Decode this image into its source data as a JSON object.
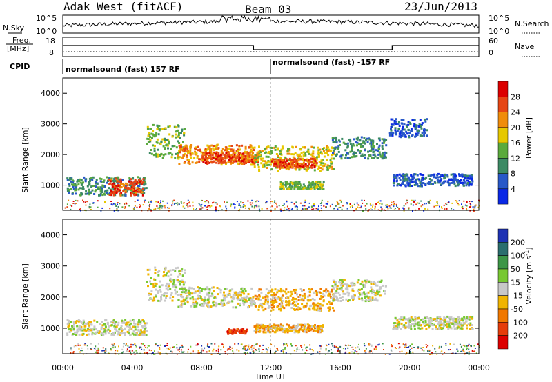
{
  "header": {
    "site": "Adak West (fitACF)",
    "beam": "Beam 03",
    "date": "23/Jun/2013"
  },
  "panels": {
    "nsky": {
      "label": "N.Sky",
      "tick_hi": "10^5",
      "tick_lo": "10^0",
      "right_label": "N.Search",
      "right_tick_hi": "10^5",
      "right_tick_lo": "10^0"
    },
    "freq": {
      "label_line1": "Freq.",
      "label_line2": "[MHz]",
      "tick_hi": "18",
      "tick_lo": "8",
      "right_label": "Nave",
      "right_tick_hi": "60",
      "right_tick_lo": "0",
      "high_mhz": 12.0,
      "low_mhz": 11.0,
      "low_start_hour": 11.0,
      "low_end_hour": 19.0
    },
    "cpid": {
      "label": "CPID",
      "segments": [
        {
          "text": "normalsound (fast) 157 RF",
          "start_hour": 0
        },
        {
          "text": "normalsound (fast) -157 RF",
          "start_hour": 12
        }
      ]
    }
  },
  "power_colorbar": {
    "label": "Power [dB]",
    "ticks": [
      "4",
      "8",
      "12",
      "16",
      "20",
      "24",
      "28"
    ],
    "colors": [
      "#0a28e6",
      "#2858c8",
      "#3c8a64",
      "#5aaa3c",
      "#e6c800",
      "#f08c0a",
      "#e64614",
      "#dc0000"
    ]
  },
  "velocity_colorbar": {
    "label": "Velocity [m s^-1]",
    "ticks": [
      "200",
      "100",
      "50",
      "15",
      "-15",
      "-50",
      "-100",
      "-200"
    ],
    "colors": [
      "#1e32b4",
      "#2a6e6e",
      "#3c9646",
      "#78c832",
      "#c8c8c8",
      "#f0b400",
      "#f07800",
      "#e63c0a",
      "#dc0000"
    ]
  },
  "chart_data": [
    {
      "type": "heatmap",
      "title": "Power",
      "xlabel": "Time UT",
      "ylabel": "Slant Range [km]",
      "xlim_hours": [
        0,
        24
      ],
      "ylim_km": [
        180,
        4500
      ],
      "x_ticks": [
        "00:00",
        "04:00",
        "08:00",
        "12:00",
        "16:00",
        "20:00",
        "00:00"
      ],
      "y_ticks": [
        1000,
        2000,
        3000,
        4000
      ],
      "bands": [
        {
          "t0": 0.2,
          "t1": 4.8,
          "r_lo": 700,
          "r_hi": 1300,
          "level": 2
        },
        {
          "t0": 2.6,
          "t1": 4.6,
          "r_lo": 700,
          "r_hi": 1250,
          "level": 6
        },
        {
          "t0": 4.8,
          "t1": 7.0,
          "r_lo": 1900,
          "r_hi": 3000,
          "level": 3
        },
        {
          "t0": 6.6,
          "t1": 11.0,
          "r_lo": 1700,
          "r_hi": 2350,
          "level": 5
        },
        {
          "t0": 8.0,
          "t1": 11.2,
          "r_lo": 1750,
          "r_hi": 2100,
          "level": 6
        },
        {
          "t0": 11.0,
          "t1": 15.6,
          "r_lo": 1500,
          "r_hi": 2300,
          "level": 4
        },
        {
          "t0": 12.0,
          "t1": 14.6,
          "r_lo": 1600,
          "r_hi": 1900,
          "level": 6
        },
        {
          "t0": 15.5,
          "t1": 18.6,
          "r_lo": 1900,
          "r_hi": 2600,
          "level": 2
        },
        {
          "t0": 12.5,
          "t1": 15.0,
          "r_lo": 900,
          "r_hi": 1150,
          "level": 3
        },
        {
          "t0": 19.0,
          "t1": 23.6,
          "r_lo": 1000,
          "r_hi": 1400,
          "level": 1
        },
        {
          "t0": 18.8,
          "t1": 21.0,
          "r_lo": 2600,
          "r_hi": 3200,
          "level": 1
        }
      ],
      "colorbar": "power_colorbar"
    },
    {
      "type": "heatmap",
      "title": "Velocity",
      "xlabel": "Time UT",
      "ylabel": "Slant Range [km]",
      "xlim_hours": [
        0,
        24
      ],
      "ylim_km": [
        180,
        4500
      ],
      "x_ticks": [
        "00:00",
        "04:00",
        "08:00",
        "12:00",
        "16:00",
        "20:00",
        "00:00"
      ],
      "y_ticks": [
        1000,
        2000,
        3000,
        4000
      ],
      "bands": [
        {
          "t0": 0.2,
          "t1": 4.8,
          "r_lo": 800,
          "r_hi": 1300,
          "level": 4
        },
        {
          "t0": 4.8,
          "t1": 7.0,
          "r_lo": 1900,
          "r_hi": 3000,
          "level": 4
        },
        {
          "t0": 6.6,
          "t1": 11.0,
          "r_lo": 1700,
          "r_hi": 2350,
          "level": 4
        },
        {
          "t0": 11.0,
          "t1": 15.6,
          "r_lo": 1600,
          "r_hi": 2300,
          "level": 5
        },
        {
          "t0": 15.5,
          "t1": 18.6,
          "r_lo": 1900,
          "r_hi": 2600,
          "level": 4
        },
        {
          "t0": 9.4,
          "t1": 10.6,
          "r_lo": 850,
          "r_hi": 1000,
          "level": 7
        },
        {
          "t0": 11.0,
          "t1": 15.0,
          "r_lo": 900,
          "r_hi": 1150,
          "level": 5
        },
        {
          "t0": 19.0,
          "t1": 23.6,
          "r_lo": 1000,
          "r_hi": 1400,
          "level": 4
        }
      ],
      "colorbar": "velocity_colorbar"
    }
  ],
  "xlabel": "Time UT"
}
